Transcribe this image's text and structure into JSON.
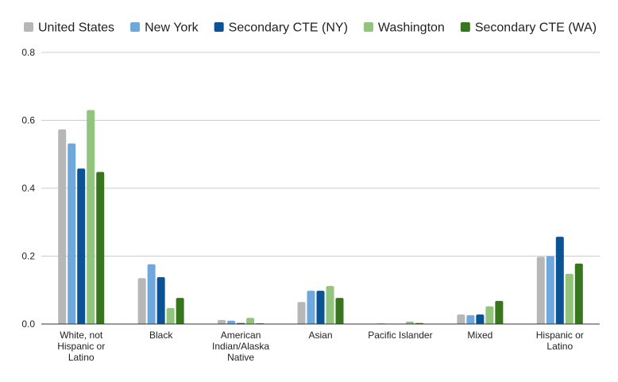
{
  "chart_data": {
    "type": "bar",
    "title": "",
    "xlabel": "",
    "ylabel": "",
    "ylim": [
      0,
      0.8
    ],
    "yticks": [
      "0.0",
      "0.2",
      "0.4",
      "0.6",
      "0.8"
    ],
    "grid": true,
    "legend_position": "top",
    "categories": [
      [
        "White, not",
        "Hispanic or",
        "Latino"
      ],
      [
        "Black"
      ],
      [
        "American",
        "Indian/Alaska",
        "Native"
      ],
      [
        "Asian"
      ],
      [
        "Pacific Islander"
      ],
      [
        "Mixed"
      ],
      [
        "Hispanic or",
        "Latino"
      ]
    ],
    "series": [
      {
        "name": "United States",
        "color": "#b7b7b7",
        "values": [
          0.573,
          0.135,
          0.012,
          0.065,
          0.002,
          0.028,
          0.198
        ]
      },
      {
        "name": "New York",
        "color": "#6fa8dc",
        "values": [
          0.532,
          0.176,
          0.01,
          0.098,
          0.001,
          0.026,
          0.2
        ]
      },
      {
        "name": "Secondary CTE (NY)",
        "color": "#0b5394",
        "values": [
          0.458,
          0.138,
          0.003,
          0.098,
          0.001,
          0.028,
          0.257
        ]
      },
      {
        "name": "Washington",
        "color": "#93c47d",
        "values": [
          0.63,
          0.047,
          0.018,
          0.112,
          0.007,
          0.052,
          0.148
        ]
      },
      {
        "name": "Secondary CTE (WA)",
        "color": "#38761d",
        "values": [
          0.448,
          0.077,
          0.002,
          0.077,
          0.003,
          0.068,
          0.178
        ]
      }
    ]
  }
}
